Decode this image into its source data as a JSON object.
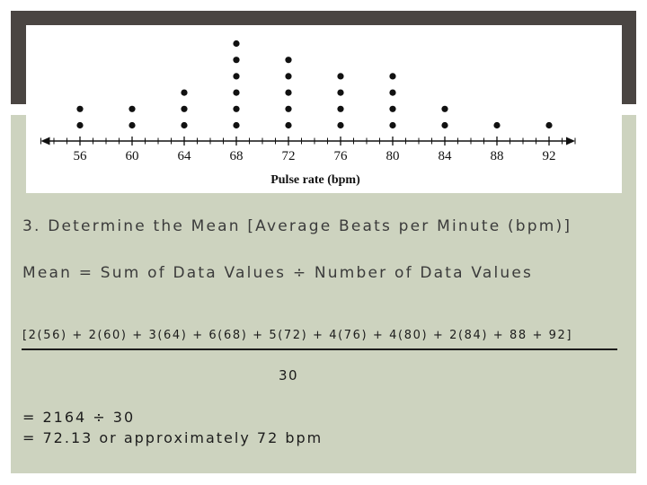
{
  "colors": {
    "top_band": "#4a4542",
    "panel_background": "#cdd3bf",
    "dot": "#111111",
    "text": "#3b3b3b"
  },
  "chart_data": {
    "type": "dot_plot",
    "title": "",
    "xlabel": "Pulse rate (bpm)",
    "ylabel": "",
    "x_ticks": [
      56,
      60,
      64,
      68,
      72,
      76,
      80,
      84,
      88,
      92
    ],
    "xlim": [
      53,
      94
    ],
    "points": [
      {
        "x": 56,
        "count": 2
      },
      {
        "x": 60,
        "count": 2
      },
      {
        "x": 64,
        "count": 3
      },
      {
        "x": 68,
        "count": 6
      },
      {
        "x": 72,
        "count": 5
      },
      {
        "x": 76,
        "count": 4
      },
      {
        "x": 80,
        "count": 4
      },
      {
        "x": 84,
        "count": 2
      },
      {
        "x": 88,
        "count": 1
      },
      {
        "x": 92,
        "count": 1
      }
    ],
    "grid": false,
    "legend": "none"
  },
  "text": {
    "step_heading": "3. Determine the Mean [Average Beats per Minute (bpm)]",
    "mean_formula": "Mean =  Sum of Data Values ÷ Number of Data Values",
    "numerator": "[2(56) + 2(60) + 3(64) + 6(68) + 5(72) + 4(76) + 4(80) + 2(84) + 88 + 92]",
    "denominator": "30",
    "result_line_1": "= 2164 ÷ 30",
    "result_line_2": "= 72.13 or approximately 72 bpm"
  }
}
